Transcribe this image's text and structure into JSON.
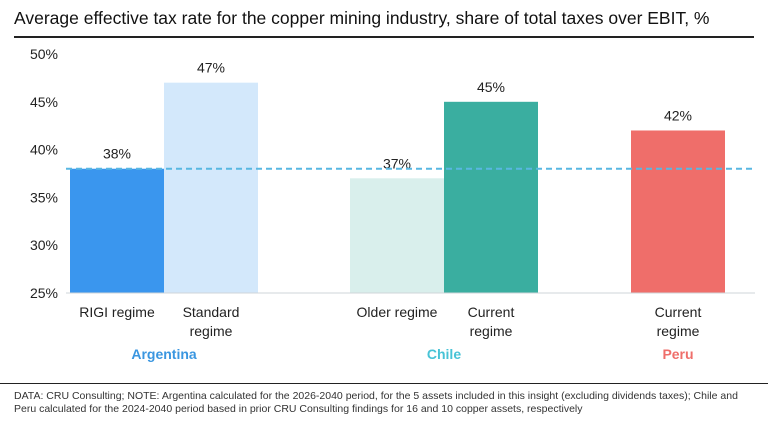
{
  "title": "Average effective tax rate for the copper mining industry, share of total taxes over EBIT, %",
  "footnote": "DATA: CRU Consulting; NOTE: Argentina calculated for the 2026-2040 period, for the 5 assets included in this insight (excluding dividends taxes); Chile and Peru calculated for the 2024-2040 period based in prior CRU Consulting findings for 16 and 10 copper assets, respectively",
  "chart_data": {
    "type": "bar",
    "ylim": [
      25,
      50
    ],
    "yticks": [
      "25%",
      "30%",
      "35%",
      "40%",
      "45%",
      "50%"
    ],
    "ytick_values": [
      25,
      30,
      35,
      40,
      45,
      50
    ],
    "reference_line": 38,
    "bars": [
      {
        "category": [
          "RIGI regime"
        ],
        "value": 38,
        "label": "38%",
        "group": "Argentina",
        "color": "#3a96ee"
      },
      {
        "category": [
          "Standard",
          "regime"
        ],
        "value": 47,
        "label": "47%",
        "group": "Argentina",
        "color": "#d3e8fb"
      },
      {
        "category": [
          "Older regime"
        ],
        "value": 37,
        "label": "37%",
        "group": "Chile",
        "color": "#d9efec"
      },
      {
        "category": [
          "Current",
          "regime"
        ],
        "value": 45,
        "label": "45%",
        "group": "Chile",
        "color": "#3aaea0"
      },
      {
        "category": [
          "Current",
          "regime"
        ],
        "value": 42,
        "label": "42%",
        "group": "Peru",
        "color": "#ef6e6a"
      }
    ],
    "groups": [
      {
        "name": "Argentina",
        "color": "#3a96e0"
      },
      {
        "name": "Chile",
        "color": "#48c3d6"
      },
      {
        "name": "Peru",
        "color": "#ef6e6a"
      }
    ],
    "grid": false,
    "reference_line_color": "#58b7e2"
  }
}
